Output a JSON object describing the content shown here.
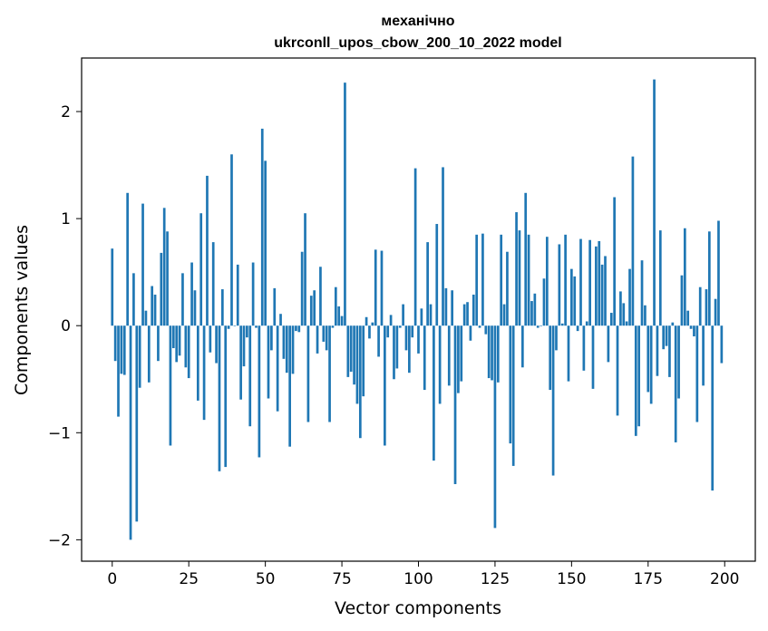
{
  "chart_data": {
    "type": "bar",
    "title": "механічно",
    "subtitle": "ukrconll_upos_cbow_200_10_2022 model",
    "xlabel": "Vector components",
    "ylabel": "Components values",
    "xlim": [
      -10,
      210
    ],
    "ylim": [
      -2.2,
      2.5
    ],
    "xticks": [
      0,
      25,
      50,
      75,
      100,
      125,
      150,
      175,
      200
    ],
    "yticks": [
      -2,
      -1,
      0,
      1,
      2
    ],
    "ytick_labels": [
      "−2",
      "−1",
      "0",
      "1",
      "2"
    ],
    "grid": false,
    "bar_color": "#1f77b4",
    "values": [
      0.72,
      -0.33,
      -0.85,
      -0.45,
      -0.46,
      1.24,
      -2.0,
      0.49,
      -1.83,
      -0.58,
      1.14,
      0.14,
      -0.53,
      0.37,
      0.29,
      -0.33,
      0.68,
      1.1,
      0.88,
      -1.12,
      -0.21,
      -0.34,
      -0.28,
      0.49,
      -0.39,
      -0.49,
      0.59,
      0.33,
      -0.7,
      1.05,
      -0.88,
      1.4,
      -0.25,
      0.78,
      -0.35,
      -1.36,
      0.34,
      -1.32,
      -0.03,
      1.6,
      0.0,
      0.57,
      -0.69,
      -0.38,
      -0.11,
      -0.94,
      0.59,
      -0.02,
      -1.23,
      1.84,
      1.54,
      -0.68,
      -0.23,
      0.35,
      -0.8,
      0.11,
      -0.31,
      -0.44,
      -1.13,
      -0.45,
      -0.05,
      -0.06,
      0.69,
      1.05,
      -0.9,
      0.28,
      0.33,
      -0.26,
      0.55,
      -0.15,
      -0.23,
      -0.9,
      -0.02,
      0.36,
      0.18,
      0.09,
      2.27,
      -0.48,
      -0.43,
      -0.55,
      -0.73,
      -1.05,
      -0.66,
      0.08,
      -0.12,
      0.03,
      0.71,
      -0.29,
      0.7,
      -1.12,
      -0.11,
      0.1,
      -0.5,
      -0.4,
      -0.02,
      0.2,
      -0.23,
      -0.44,
      -0.11,
      1.47,
      -0.26,
      0.16,
      -0.6,
      0.78,
      0.2,
      -1.26,
      0.95,
      -0.73,
      1.48,
      0.35,
      -0.56,
      0.33,
      -1.48,
      -0.63,
      -0.52,
      0.2,
      0.22,
      -0.14,
      0.29,
      0.85,
      -0.02,
      0.86,
      -0.08,
      -0.49,
      -0.51,
      -1.89,
      -0.53,
      0.85,
      0.2,
      0.69,
      -1.1,
      -1.31,
      1.06,
      0.89,
      -0.39,
      1.24,
      0.85,
      0.23,
      0.3,
      -0.02,
      0.0,
      0.44,
      0.83,
      -0.6,
      -1.4,
      -0.23,
      0.76,
      0.02,
      0.85,
      -0.52,
      0.53,
      0.46,
      -0.05,
      0.81,
      -0.42,
      0.04,
      0.8,
      -0.59,
      0.74,
      0.79,
      0.57,
      0.65,
      -0.34,
      0.12,
      1.2,
      -0.84,
      0.32,
      0.21,
      0.04,
      0.53,
      1.58,
      -1.03,
      -0.94,
      0.61,
      0.19,
      -0.62,
      -0.73,
      2.3,
      -0.47,
      0.89,
      -0.22,
      -0.19,
      -0.48,
      0.03,
      -1.09,
      -0.68,
      0.47,
      0.91,
      0.14,
      -0.03,
      -0.1,
      -0.9,
      0.36,
      -0.56,
      0.34,
      0.88,
      -1.54,
      0.25,
      0.98,
      -0.35
    ]
  }
}
